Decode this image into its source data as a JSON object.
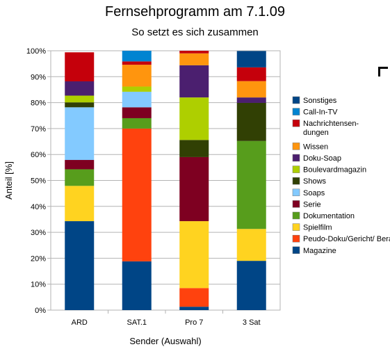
{
  "chart_data": {
    "type": "bar",
    "stacked": true,
    "title": "Fernsehprogramm am 7.1.09",
    "subtitle": "So setzt es sich zusammen",
    "xlabel": "Sender (Auswahl)",
    "ylabel": "Anteil [%]",
    "ylim": [
      0,
      100
    ],
    "yticks": [
      "0%",
      "10%",
      "20%",
      "30%",
      "40%",
      "50%",
      "60%",
      "70%",
      "80%",
      "90%",
      "100%"
    ],
    "grid": true,
    "legend_position": "right",
    "categories": [
      "ARD",
      "SAT.1",
      "Pro 7",
      "3 Sat"
    ],
    "series": [
      {
        "name": "Magazine",
        "color": "#004586",
        "values": [
          34.3,
          18.8,
          1.3,
          19.0
        ]
      },
      {
        "name": "Peudo-Doku/Gericht/ Beratung/Talk",
        "color": "#ff420e",
        "values": [
          0,
          51.2,
          7.2,
          0
        ]
      },
      {
        "name": "Spielfilm",
        "color": "#ffd320",
        "values": [
          13.6,
          0,
          25.8,
          12.3
        ]
      },
      {
        "name": "Dokumentation",
        "color": "#579d1c",
        "values": [
          6.4,
          4.0,
          0,
          33.9
        ]
      },
      {
        "name": "Serie",
        "color": "#7e0021",
        "values": [
          3.6,
          4.2,
          24.7,
          0
        ]
      },
      {
        "name": "Soaps",
        "color": "#83caff",
        "values": [
          20.3,
          6.0,
          0,
          0
        ]
      },
      {
        "name": "Shows",
        "color": "#314004",
        "values": [
          1.9,
          0,
          6.6,
          14.7
        ]
      },
      {
        "name": "Boulevardmagazin",
        "color": "#aecf00",
        "values": [
          2.6,
          2.0,
          16.4,
          0
        ]
      },
      {
        "name": "Doku-Soap",
        "color": "#4b1f6f",
        "values": [
          5.5,
          0,
          12.4,
          2.1
        ]
      },
      {
        "name": "Wissen",
        "color": "#ff950e",
        "values": [
          0,
          8.4,
          4.6,
          6.3
        ]
      },
      {
        "name": "Nachrichtensen-dungen",
        "legend_lines": [
          "Nachrichtensen-",
          "dungen"
        ],
        "color": "#c5000b",
        "values": [
          11.2,
          1.3,
          1.0,
          5.3
        ]
      },
      {
        "name": "Call-In-TV",
        "color": "#0084d1",
        "values": [
          0,
          4.1,
          0,
          0
        ]
      },
      {
        "name": "Sonstiges",
        "color": "#004586",
        "values": [
          0,
          0,
          0,
          6.3
        ]
      }
    ]
  }
}
